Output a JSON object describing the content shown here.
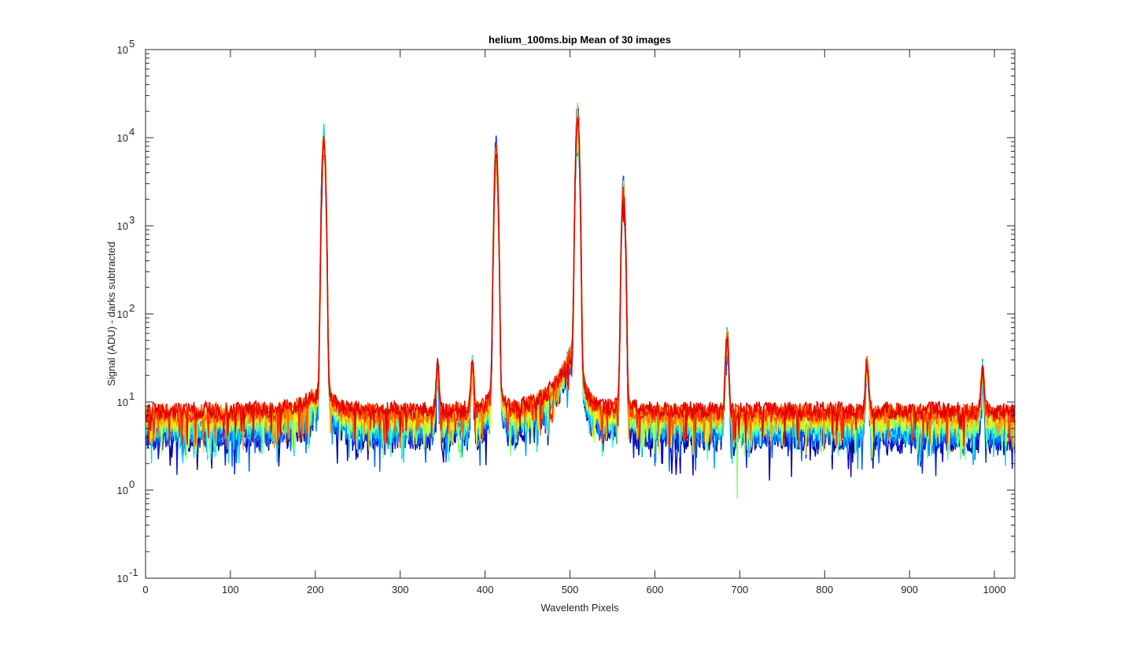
{
  "chart_data": {
    "type": "line",
    "title": "helium_100ms.bip  Mean of 30 images",
    "xlabel": "Wavelenth Pixels",
    "ylabel": "Signal (ADU) - darks subtracted",
    "xlim": [
      0,
      1024
    ],
    "ylim": [
      0.1,
      100000
    ],
    "yscale": "log",
    "grid": false,
    "legend": "none",
    "x_ticks": [
      {
        "value": 0,
        "label": "0"
      },
      {
        "value": 100,
        "label": "100"
      },
      {
        "value": 200,
        "label": "200"
      },
      {
        "value": 300,
        "label": "300"
      },
      {
        "value": 400,
        "label": "400"
      },
      {
        "value": 500,
        "label": "500"
      },
      {
        "value": 600,
        "label": "600"
      },
      {
        "value": 700,
        "label": "700"
      },
      {
        "value": 800,
        "label": "800"
      },
      {
        "value": 900,
        "label": "900"
      },
      {
        "value": 1000,
        "label": "1000"
      }
    ],
    "y_ticks": [
      {
        "value": 0.1,
        "base": "10",
        "exp": "-1"
      },
      {
        "value": 1,
        "base": "10",
        "exp": "0"
      },
      {
        "value": 10,
        "base": "10",
        "exp": "1"
      },
      {
        "value": 100,
        "base": "10",
        "exp": "2"
      },
      {
        "value": 1000,
        "base": "10",
        "exp": "3"
      },
      {
        "value": 10000,
        "base": "10",
        "exp": "4"
      },
      {
        "value": 100000,
        "base": "10",
        "exp": "5"
      }
    ],
    "colormap": [
      "#0000a8",
      "#0020d8",
      "#0060ff",
      "#00a0ff",
      "#10d8e8",
      "#40ffb8",
      "#90ff70",
      "#d8ff30",
      "#ffe000",
      "#ffa000",
      "#ff6000",
      "#ff2000",
      "#e00000"
    ],
    "series_count": 30,
    "peaks": [
      {
        "x": 210,
        "y": 10000
      },
      {
        "x": 344,
        "y": 17
      },
      {
        "x": 385,
        "y": 18
      },
      {
        "x": 413,
        "y": 7000
      },
      {
        "x": 509,
        "y": 18000
      },
      {
        "x": 563,
        "y": 2500
      },
      {
        "x": 685,
        "y": 45
      },
      {
        "x": 850,
        "y": 21
      },
      {
        "x": 986,
        "y": 16
      }
    ],
    "baseline": {
      "low_series": 4,
      "high_series": 8
    },
    "min_dip": {
      "x": 697,
      "y": 0.8
    }
  }
}
